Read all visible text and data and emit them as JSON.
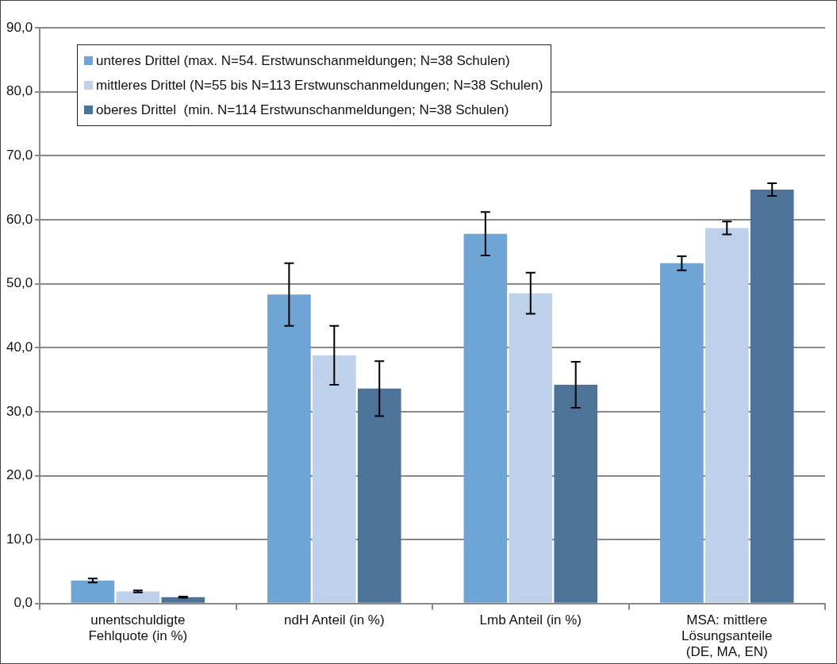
{
  "chart_data": {
    "type": "bar",
    "categories": [
      "unentschuldigte\nFehlquote (in %)",
      "ndH Anteil (in %)",
      "Lmb Anteil (in %)",
      "MSA: mittlere\nLösungsanteile\n(DE, MA, EN)"
    ],
    "series": [
      {
        "name": "unteres Drittel (max. N=54. Erstwunschanmeldungen; N=38 Schulen)",
        "color": "#6fa5d4",
        "values": [
          3.6,
          48.3,
          57.8,
          53.2
        ],
        "errors": [
          0.3,
          4.9,
          3.4,
          1.1
        ]
      },
      {
        "name": "mittleres Drittel (N=55 bis N=113 Erstwunschanmeldungen; N=38 Schulen)",
        "color": "#bdd1ea",
        "values": [
          1.9,
          38.8,
          48.5,
          58.7
        ],
        "errors": [
          0.15,
          4.6,
          3.2,
          1.0
        ]
      },
      {
        "name": "oberes Drittel  (min. N=114 Erstwunschanmeldungen; N=38 Schulen)",
        "color": "#4e7398",
        "values": [
          1.0,
          33.6,
          34.2,
          64.7
        ],
        "errors": [
          0.1,
          4.3,
          3.6,
          1.0
        ]
      }
    ],
    "ylim": [
      0,
      90
    ],
    "yticks": [
      {
        "value": 0,
        "label": "0,0"
      },
      {
        "value": 10,
        "label": "10,0"
      },
      {
        "value": 20,
        "label": "20,0"
      },
      {
        "value": 30,
        "label": "30,0"
      },
      {
        "value": 40,
        "label": "40,0"
      },
      {
        "value": 50,
        "label": "50,0"
      },
      {
        "value": 60,
        "label": "60,0"
      },
      {
        "value": 70,
        "label": "70,0"
      },
      {
        "value": 80,
        "label": "80,0"
      },
      {
        "value": 90,
        "label": "90,0"
      }
    ],
    "grid": "y",
    "legend": "top left"
  }
}
